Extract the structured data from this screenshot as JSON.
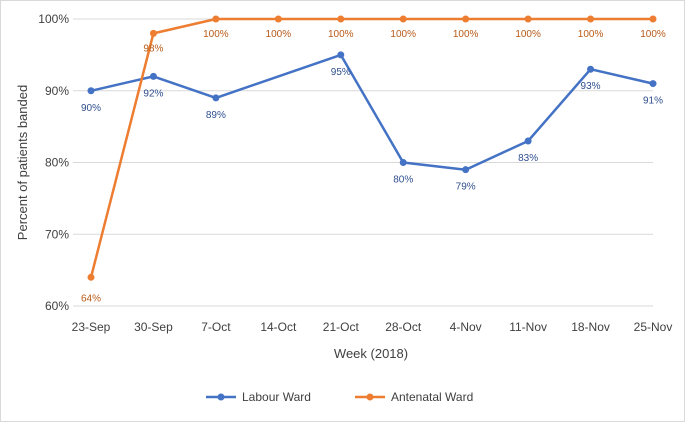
{
  "chart_data": {
    "type": "line",
    "title": "",
    "xlabel": "Week (2018)",
    "ylabel": "Percent of patients banded",
    "categories": [
      "23-Sep",
      "30-Sep",
      "7-Oct",
      "14-Oct",
      "21-Oct",
      "28-Oct",
      "4-Nov",
      "11-Nov",
      "18-Nov",
      "25-Nov"
    ],
    "yticks": [
      "60%",
      "70%",
      "80%",
      "90%",
      "100%"
    ],
    "ylim": [
      60,
      100
    ],
    "grid": true,
    "legend_position": "bottom",
    "series": [
      {
        "name": "Labour Ward",
        "color": "#4472c4",
        "values": [
          90,
          92,
          89,
          null,
          95,
          80,
          79,
          83,
          93,
          91
        ],
        "labels": [
          "90%",
          "92%",
          "89%",
          "",
          "95%",
          "80%",
          "79%",
          "83%",
          "93%",
          "91%"
        ]
      },
      {
        "name": "Antenatal Ward",
        "color": "#ed7d31",
        "values": [
          64,
          98,
          100,
          100,
          100,
          100,
          100,
          100,
          100,
          100
        ],
        "labels": [
          "64%",
          "98%",
          "100%",
          "100%",
          "100%",
          "100%",
          "100%",
          "100%",
          "100%",
          "100%"
        ]
      }
    ]
  }
}
